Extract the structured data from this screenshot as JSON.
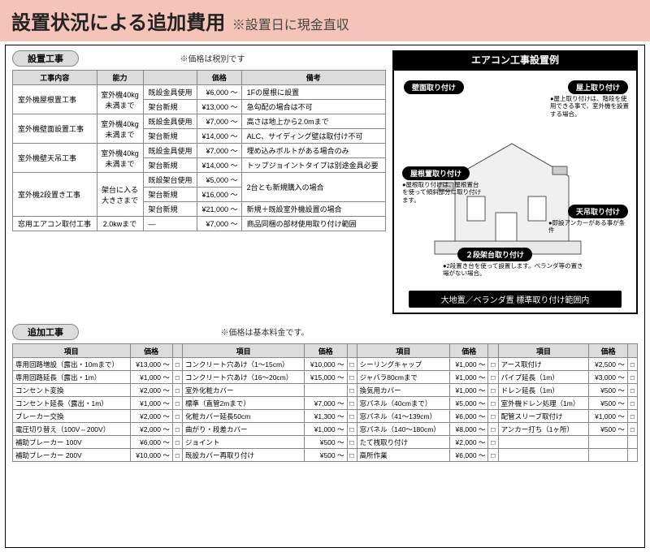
{
  "header": {
    "title": "設置状況による追加費用",
    "sub": "※設置日に現金直収",
    "title_fontsize": 24,
    "sub_fontsize": 16,
    "band_color": "#f5c4b8"
  },
  "section1": {
    "pill": "設置工事",
    "note": "※価格は税別です",
    "headers": [
      "工事内容",
      "能力",
      "",
      "価格",
      "備考"
    ],
    "rows": [
      {
        "name": "室外機屋根置工事",
        "ability": "室外機40kg\n未満まで",
        "sub": [
          {
            "a": "既設金具使用",
            "p": "¥6,000 ～",
            "r": "1Fの屋根に設置"
          },
          {
            "a": "架台新規",
            "p": "¥13,000 ～",
            "r": "急勾配の場合は不可"
          }
        ]
      },
      {
        "name": "室外機壁面設置工事",
        "ability": "室外機40kg\n未満まで",
        "sub": [
          {
            "a": "既設金具使用",
            "p": "¥7,000 ～",
            "r": "高さは地上から2.0mまで"
          },
          {
            "a": "架台新規",
            "p": "¥14,000 ～",
            "r": "ALC、サイディング壁は取付け不可"
          }
        ]
      },
      {
        "name": "室外機壁天吊工事",
        "ability": "室外機40kg\n未満まで",
        "sub": [
          {
            "a": "既設金具使用",
            "p": "¥7,000 ～",
            "r": "埋め込みボルトがある場合のみ"
          },
          {
            "a": "架台新規",
            "p": "¥14,000 ～",
            "r": "トップジョイントタイプは別途金具必要"
          }
        ]
      },
      {
        "name": "室外機2段置き工事",
        "ability": "架台に入る\n大きさまで",
        "sub": [
          {
            "a": "既設架台使用",
            "p": "¥5,000 ～",
            "r": "2台とも新規購入の場合"
          },
          {
            "a": "架台新規",
            "p": "¥16,000 ～",
            "r": ""
          },
          {
            "a": "架台新規",
            "p": "¥21,000 ～",
            "r": "新規＋既設室外機設置の場合"
          }
        ]
      },
      {
        "name": "窓用エアコン取付工事",
        "ability": "2.0kwまで",
        "sub": [
          {
            "a": "―",
            "p": "¥7,000 ～",
            "r": "商品同梱の部材使用取り付け範囲"
          }
        ]
      }
    ]
  },
  "example": {
    "title": "エアコン工事設置例",
    "pills": {
      "wall": "壁面取り付け",
      "roof_top": "屋上取り付け",
      "roof": "屋根置取り付け",
      "ceiling": "天吊取り付け",
      "two_stage": "２段架台取り付け"
    },
    "notes": {
      "roof_top": "●屋上取り付けは、階段を使用できる事で、室外機を設置する場合。",
      "roof": "●屋根取り付けは、屋根置台を使って傾斜部分に取り付けます。",
      "ceiling": "●即設アンカーがある事が条件",
      "two_stage": "●2段置き台を使って設置します。ベランダ等の置き場がない場合。"
    },
    "big_label": "大地置／ベランダ置 標準取り付け範囲内"
  },
  "section2": {
    "pill": "追加工事",
    "note": "※価格は基本料金です。",
    "headers": [
      "項目",
      "価格",
      "",
      "項目",
      "価格",
      "",
      "項目",
      "価格",
      "",
      "項目",
      "価格",
      ""
    ],
    "rows": [
      [
        "専用回路増設（露出・10mまで）",
        "¥13,000 ～",
        "コンクリート穴あけ（1～15cm）",
        "¥10,000 ～",
        "シーリングキャップ",
        "¥1,000 ～",
        "アース取付け",
        "¥2,500 ～"
      ],
      [
        "専用回路延長（露出・1m）",
        "¥1,000 ～",
        "コンクリート穴あけ（16～20cm）",
        "¥15,000 ～",
        "ジャバラ80cmまで",
        "¥1,000 ～",
        "パイプ延長（1m）",
        "¥3,000 ～"
      ],
      [
        "コンセント変換",
        "¥2,000 ～",
        "室外化粧カバー",
        "",
        "換気用カバー",
        "¥1,000 ～",
        "ドレン延長（1m）",
        "¥500 ～"
      ],
      [
        "コンセント延長（露出・1m）",
        "¥1,000 ～",
        "標準（直管2mまで）",
        "¥7,000 ～",
        "窓パネル（40cmまで）",
        "¥5,000 ～",
        "室外機ドレン処理（1m）",
        "¥500 ～"
      ],
      [
        "ブレーカー交換",
        "¥2,000 ～",
        "化粧カバー延長50cm",
        "¥1,300 ～",
        "窓パネル（41～139cm）",
        "¥6,000 ～",
        "配管スリーブ取付け",
        "¥1,000 ～"
      ],
      [
        "電圧切り替え（100V⇔200V）",
        "¥2,000 ～",
        "曲がり・段差カバー",
        "¥1,000 ～",
        "窓パネル（140～180cm）",
        "¥8,000 ～",
        "アンカー打ち（1ヶ所）",
        "¥500 ～"
      ],
      [
        "補助ブレーカー 100V",
        "¥6,000 ～",
        "ジョイント",
        "¥500 ～",
        "たて桟取り付け",
        "¥2,000 ～",
        "",
        ""
      ],
      [
        "補助ブレーカー 200V",
        "¥10,000 ～",
        "既設カバー再取り付け",
        "¥500 ～",
        "高所作業",
        "¥6,000 ～",
        "",
        ""
      ]
    ]
  },
  "colors": {
    "th_bg": "#dcdcdc",
    "border": "#888888",
    "pill_bg": "#dcdcdc"
  }
}
